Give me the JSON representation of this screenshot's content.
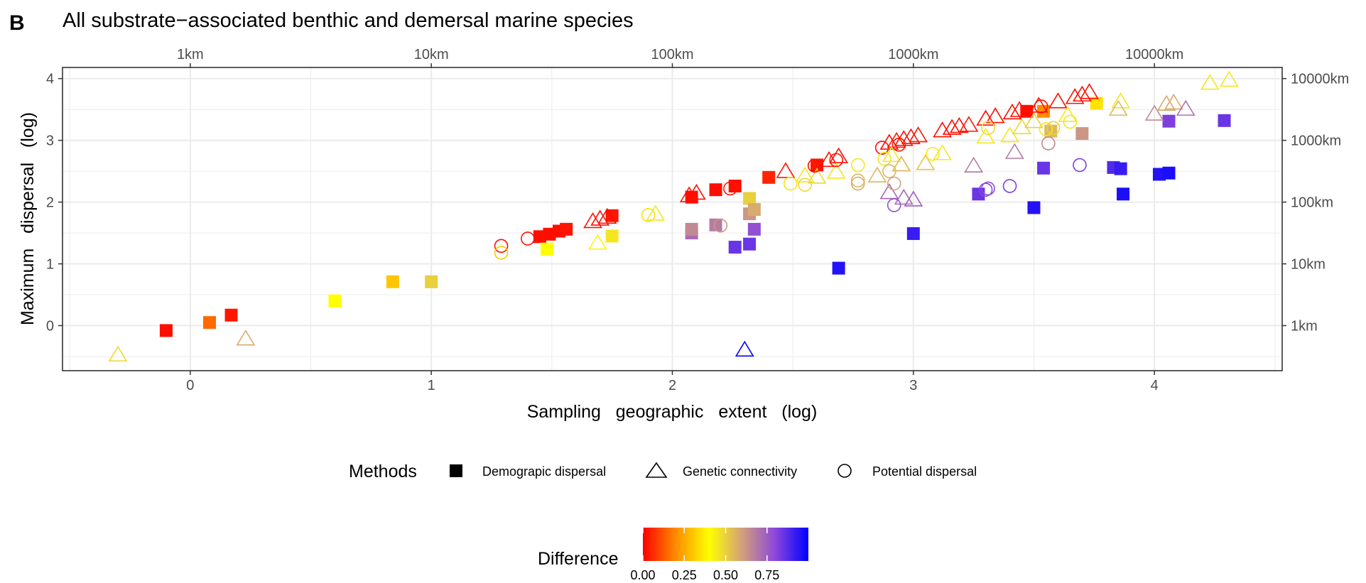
{
  "panel_letter": "B",
  "chart_data": {
    "type": "scatter",
    "title": "All substrate−associated benthic and demersal marine species",
    "xlabel": "Sampling   geographic   extent   (log)",
    "ylabel": "Maximum   dispersal   (log)",
    "xlim": [
      -0.53,
      4.53
    ],
    "ylim": [
      -0.73,
      4.18
    ],
    "grid": true,
    "x_ticks": [
      0,
      1,
      2,
      3,
      4
    ],
    "y_ticks": [
      0,
      1,
      2,
      3,
      4
    ],
    "x_tick_labels": [
      "0",
      "1",
      "2",
      "3",
      "4"
    ],
    "y_tick_labels": [
      "0",
      "1",
      "2",
      "3",
      "4"
    ],
    "x_top_ticks": [
      0,
      1,
      2,
      3,
      4
    ],
    "x_top_tick_labels": [
      "1km",
      "10km",
      "100km",
      "1000km",
      "10000km"
    ],
    "y_right_ticks": [
      0,
      1,
      2,
      3,
      4
    ],
    "y_right_tick_labels": [
      "1km",
      "10km",
      "100km",
      "1000km",
      "10000km"
    ],
    "legend_shape": {
      "title": "Methods",
      "position": "bottom",
      "entries": [
        {
          "key": "demographic",
          "label": "Demograpic dispersal",
          "shape": "square"
        },
        {
          "key": "genetic",
          "label": "Genetic connectivity",
          "shape": "triangle"
        },
        {
          "key": "potential",
          "label": "Potential dispersal",
          "shape": "circle"
        }
      ]
    },
    "legend_color": {
      "title": "Difference",
      "position": "bottom",
      "gradient": [
        "#ff0000",
        "#ff8c00",
        "#ffff00",
        "#d2a07a",
        "#8c46dc",
        "#0000ff"
      ],
      "ticks": [
        0,
        0.25,
        0.5,
        0.75
      ],
      "tick_labels": [
        "0.00",
        "0.25",
        "0.50",
        "0.75"
      ],
      "range": [
        0,
        1
      ]
    },
    "series": [
      {
        "method": "demographic",
        "points": [
          {
            "x": -0.1,
            "y": -0.08,
            "diff": 0.02
          },
          {
            "x": 0.08,
            "y": 0.05,
            "diff": 0.15
          },
          {
            "x": 0.17,
            "y": 0.17,
            "diff": 0.03
          },
          {
            "x": 0.6,
            "y": 0.4,
            "diff": 0.4
          },
          {
            "x": 0.84,
            "y": 0.71,
            "diff": 0.3
          },
          {
            "x": 1.0,
            "y": 0.71,
            "diff": 0.5
          },
          {
            "x": 1.45,
            "y": 1.44,
            "diff": 0.02
          },
          {
            "x": 1.49,
            "y": 1.48,
            "diff": 0.02
          },
          {
            "x": 1.53,
            "y": 1.53,
            "diff": 0.02
          },
          {
            "x": 1.56,
            "y": 1.56,
            "diff": 0.03
          },
          {
            "x": 1.48,
            "y": 1.24,
            "diff": 0.4
          },
          {
            "x": 1.75,
            "y": 1.78,
            "diff": 0.03
          },
          {
            "x": 1.75,
            "y": 1.45,
            "diff": 0.45
          },
          {
            "x": 2.08,
            "y": 2.08,
            "diff": 0.02
          },
          {
            "x": 2.08,
            "y": 1.5,
            "diff": 0.72
          },
          {
            "x": 2.08,
            "y": 1.56,
            "diff": 0.65
          },
          {
            "x": 2.18,
            "y": 2.2,
            "diff": 0.02
          },
          {
            "x": 2.18,
            "y": 1.63,
            "diff": 0.68
          },
          {
            "x": 2.26,
            "y": 2.26,
            "diff": 0.02
          },
          {
            "x": 2.26,
            "y": 1.27,
            "diff": 0.85
          },
          {
            "x": 2.32,
            "y": 2.06,
            "diff": 0.5
          },
          {
            "x": 2.32,
            "y": 1.81,
            "diff": 0.62
          },
          {
            "x": 2.34,
            "y": 1.88,
            "diff": 0.58
          },
          {
            "x": 2.34,
            "y": 1.56,
            "diff": 0.78
          },
          {
            "x": 2.32,
            "y": 1.32,
            "diff": 0.85
          },
          {
            "x": 2.4,
            "y": 2.4,
            "diff": 0.05
          },
          {
            "x": 2.6,
            "y": 2.6,
            "diff": 0.03
          },
          {
            "x": 2.69,
            "y": 0.93,
            "diff": 0.95
          },
          {
            "x": 3.0,
            "y": 1.49,
            "diff": 0.92
          },
          {
            "x": 3.27,
            "y": 2.13,
            "diff": 0.85
          },
          {
            "x": 3.47,
            "y": 3.47,
            "diff": 0.02
          },
          {
            "x": 3.54,
            "y": 3.47,
            "diff": 0.2
          },
          {
            "x": 3.54,
            "y": 2.55,
            "diff": 0.85
          },
          {
            "x": 3.5,
            "y": 1.91,
            "diff": 0.95
          },
          {
            "x": 3.57,
            "y": 3.15,
            "diff": 0.55
          },
          {
            "x": 3.7,
            "y": 3.11,
            "diff": 0.62
          },
          {
            "x": 3.76,
            "y": 3.6,
            "diff": 0.35
          },
          {
            "x": 3.83,
            "y": 2.56,
            "diff": 0.88
          },
          {
            "x": 3.86,
            "y": 2.54,
            "diff": 0.92
          },
          {
            "x": 3.87,
            "y": 2.13,
            "diff": 0.96
          },
          {
            "x": 4.02,
            "y": 2.45,
            "diff": 0.95
          },
          {
            "x": 4.06,
            "y": 2.47,
            "diff": 0.96
          },
          {
            "x": 4.06,
            "y": 3.31,
            "diff": 0.82
          },
          {
            "x": 4.29,
            "y": 3.32,
            "diff": 0.85
          }
        ]
      },
      {
        "method": "genetic",
        "points": [
          {
            "x": -0.3,
            "y": -0.48,
            "diff": 0.48
          },
          {
            "x": 0.23,
            "y": -0.22,
            "diff": 0.58
          },
          {
            "x": 1.69,
            "y": 1.33,
            "diff": 0.42
          },
          {
            "x": 1.67,
            "y": 1.68,
            "diff": 0.03
          },
          {
            "x": 1.7,
            "y": 1.72,
            "diff": 0.02
          },
          {
            "x": 1.73,
            "y": 1.75,
            "diff": 0.02
          },
          {
            "x": 1.93,
            "y": 1.8,
            "diff": 0.45
          },
          {
            "x": 2.07,
            "y": 2.1,
            "diff": 0.02
          },
          {
            "x": 2.1,
            "y": 2.14,
            "diff": 0.02
          },
          {
            "x": 2.3,
            "y": -0.4,
            "diff": 0.99
          },
          {
            "x": 2.47,
            "y": 2.49,
            "diff": 0.03
          },
          {
            "x": 2.55,
            "y": 2.42,
            "diff": 0.45
          },
          {
            "x": 2.6,
            "y": 2.4,
            "diff": 0.48
          },
          {
            "x": 2.65,
            "y": 2.67,
            "diff": 0.02
          },
          {
            "x": 2.69,
            "y": 2.73,
            "diff": 0.02
          },
          {
            "x": 2.68,
            "y": 2.48,
            "diff": 0.45
          },
          {
            "x": 2.85,
            "y": 2.42,
            "diff": 0.55
          },
          {
            "x": 2.9,
            "y": 2.95,
            "diff": 0.02
          },
          {
            "x": 2.93,
            "y": 2.98,
            "diff": 0.03
          },
          {
            "x": 2.96,
            "y": 3.01,
            "diff": 0.02
          },
          {
            "x": 2.99,
            "y": 3.04,
            "diff": 0.02
          },
          {
            "x": 3.02,
            "y": 3.07,
            "diff": 0.03
          },
          {
            "x": 2.91,
            "y": 2.75,
            "diff": 0.45
          },
          {
            "x": 2.95,
            "y": 2.6,
            "diff": 0.55
          },
          {
            "x": 3.05,
            "y": 2.62,
            "diff": 0.52
          },
          {
            "x": 3.12,
            "y": 2.78,
            "diff": 0.45
          },
          {
            "x": 2.9,
            "y": 2.15,
            "diff": 0.72
          },
          {
            "x": 2.96,
            "y": 2.06,
            "diff": 0.72
          },
          {
            "x": 3.0,
            "y": 2.03,
            "diff": 0.75
          },
          {
            "x": 3.12,
            "y": 3.15,
            "diff": 0.02
          },
          {
            "x": 3.16,
            "y": 3.19,
            "diff": 0.02
          },
          {
            "x": 3.19,
            "y": 3.22,
            "diff": 0.02
          },
          {
            "x": 3.23,
            "y": 3.24,
            "diff": 0.03
          },
          {
            "x": 3.3,
            "y": 3.34,
            "diff": 0.02
          },
          {
            "x": 3.34,
            "y": 3.38,
            "diff": 0.02
          },
          {
            "x": 3.3,
            "y": 3.05,
            "diff": 0.45
          },
          {
            "x": 3.25,
            "y": 2.58,
            "diff": 0.68
          },
          {
            "x": 3.41,
            "y": 3.44,
            "diff": 0.02
          },
          {
            "x": 3.44,
            "y": 3.48,
            "diff": 0.02
          },
          {
            "x": 3.52,
            "y": 3.55,
            "diff": 0.03
          },
          {
            "x": 3.4,
            "y": 3.07,
            "diff": 0.45
          },
          {
            "x": 3.45,
            "y": 3.2,
            "diff": 0.48
          },
          {
            "x": 3.5,
            "y": 3.3,
            "diff": 0.5
          },
          {
            "x": 3.42,
            "y": 2.8,
            "diff": 0.68
          },
          {
            "x": 3.6,
            "y": 3.62,
            "diff": 0.02
          },
          {
            "x": 3.67,
            "y": 3.69,
            "diff": 0.02
          },
          {
            "x": 3.7,
            "y": 3.73,
            "diff": 0.02
          },
          {
            "x": 3.73,
            "y": 3.77,
            "diff": 0.02
          },
          {
            "x": 3.64,
            "y": 3.4,
            "diff": 0.45
          },
          {
            "x": 3.86,
            "y": 3.62,
            "diff": 0.45
          },
          {
            "x": 3.85,
            "y": 3.5,
            "diff": 0.55
          },
          {
            "x": 4.0,
            "y": 3.42,
            "diff": 0.65
          },
          {
            "x": 4.05,
            "y": 3.58,
            "diff": 0.58
          },
          {
            "x": 4.08,
            "y": 3.6,
            "diff": 0.58
          },
          {
            "x": 4.13,
            "y": 3.5,
            "diff": 0.7
          },
          {
            "x": 4.23,
            "y": 3.92,
            "diff": 0.45
          },
          {
            "x": 4.31,
            "y": 3.97,
            "diff": 0.45
          }
        ]
      },
      {
        "method": "potential",
        "points": [
          {
            "x": 1.29,
            "y": 1.29,
            "diff": 0.02
          },
          {
            "x": 1.29,
            "y": 1.18,
            "diff": 0.3
          },
          {
            "x": 1.4,
            "y": 1.41,
            "diff": 0.03
          },
          {
            "x": 1.9,
            "y": 1.79,
            "diff": 0.35
          },
          {
            "x": 2.2,
            "y": 1.62,
            "diff": 0.62
          },
          {
            "x": 2.24,
            "y": 2.22,
            "diff": 0.03
          },
          {
            "x": 2.49,
            "y": 2.3,
            "diff": 0.45
          },
          {
            "x": 2.55,
            "y": 2.28,
            "diff": 0.48
          },
          {
            "x": 2.59,
            "y": 2.59,
            "diff": 0.02
          },
          {
            "x": 2.68,
            "y": 2.68,
            "diff": 0.03
          },
          {
            "x": 2.77,
            "y": 2.6,
            "diff": 0.45
          },
          {
            "x": 2.77,
            "y": 2.3,
            "diff": 0.58
          },
          {
            "x": 2.77,
            "y": 2.35,
            "diff": 0.55
          },
          {
            "x": 2.87,
            "y": 2.88,
            "diff": 0.02
          },
          {
            "x": 2.88,
            "y": 2.7,
            "diff": 0.45
          },
          {
            "x": 2.9,
            "y": 2.5,
            "diff": 0.55
          },
          {
            "x": 2.92,
            "y": 2.3,
            "diff": 0.6
          },
          {
            "x": 2.92,
            "y": 1.95,
            "diff": 0.78
          },
          {
            "x": 2.94,
            "y": 2.93,
            "diff": 0.03
          },
          {
            "x": 3.08,
            "y": 2.78,
            "diff": 0.45
          },
          {
            "x": 3.3,
            "y": 2.2,
            "diff": 0.8
          },
          {
            "x": 3.31,
            "y": 2.22,
            "diff": 0.78
          },
          {
            "x": 3.31,
            "y": 3.2,
            "diff": 0.48
          },
          {
            "x": 3.4,
            "y": 2.26,
            "diff": 0.82
          },
          {
            "x": 3.53,
            "y": 3.55,
            "diff": 0.02
          },
          {
            "x": 3.55,
            "y": 3.18,
            "diff": 0.45
          },
          {
            "x": 3.58,
            "y": 3.2,
            "diff": 0.5
          },
          {
            "x": 3.56,
            "y": 2.95,
            "diff": 0.65
          },
          {
            "x": 3.65,
            "y": 3.3,
            "diff": 0.45
          },
          {
            "x": 3.69,
            "y": 2.6,
            "diff": 0.82
          }
        ]
      }
    ]
  }
}
